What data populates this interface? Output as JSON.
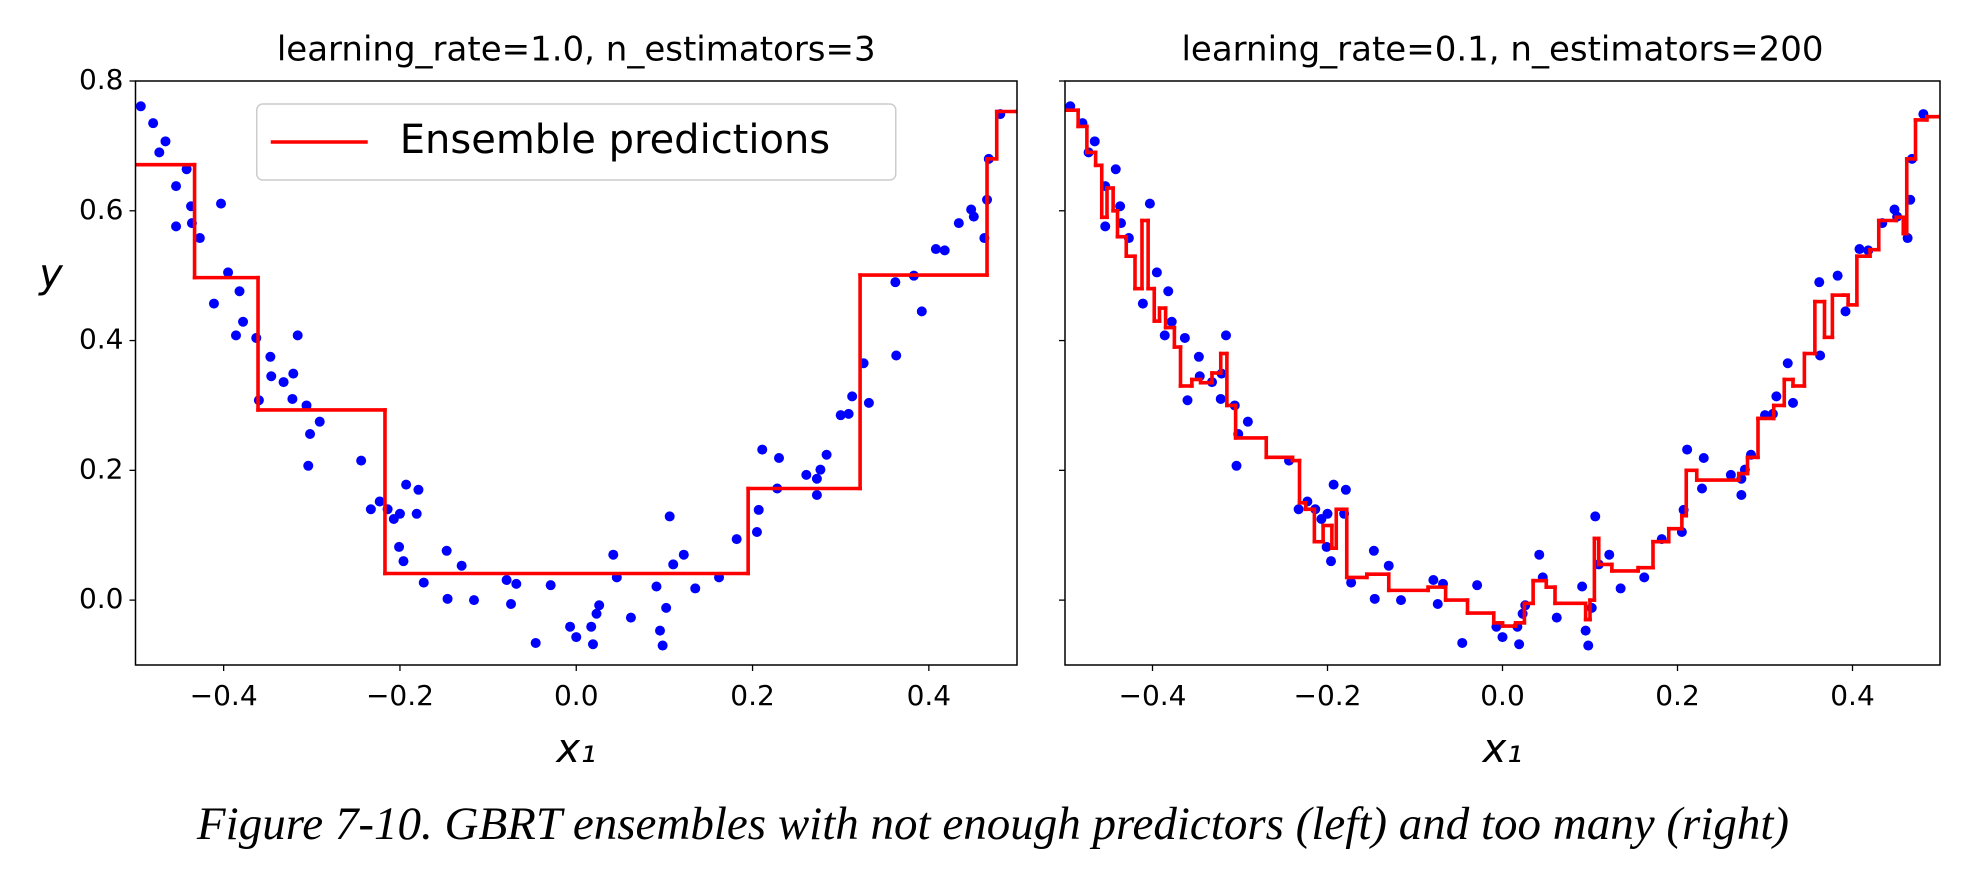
{
  "caption": "Figure 7-10. GBRT ensembles with not enough predictors (left) and too many (right)",
  "chart_data": [
    {
      "type": "scatter-step",
      "title": "learning_rate=1.0, n_estimators=3",
      "xlabel": "x₁",
      "ylabel": "y",
      "xlim": [
        -0.5,
        0.5
      ],
      "ylim": [
        -0.1,
        0.8
      ],
      "xticks": [
        {
          "value": -0.4,
          "label": "−0.4"
        },
        {
          "value": -0.2,
          "label": "−0.2"
        },
        {
          "value": 0,
          "label": "0.0"
        },
        0.2,
        0.4
      ],
      "yticks": [
        {
          "value": 0,
          "label": "0.0"
        },
        0.2,
        0.4,
        0.6,
        0.8
      ],
      "legend": "upper center",
      "scatter": {
        "color": "#0000ff",
        "x": [
          -0.494,
          -0.48,
          -0.473,
          -0.466,
          -0.454,
          -0.454,
          -0.442,
          -0.437,
          -0.436,
          -0.427,
          -0.403,
          -0.411,
          -0.395,
          -0.382,
          -0.378,
          -0.386,
          -0.363,
          -0.36,
          -0.347,
          -0.346,
          -0.332,
          -0.321,
          -0.316,
          -0.322,
          -0.306,
          -0.302,
          -0.291,
          -0.304,
          -0.244,
          -0.233,
          -0.223,
          -0.214,
          -0.207,
          -0.2,
          -0.201,
          -0.196,
          -0.193,
          -0.179,
          -0.181,
          -0.173,
          -0.147,
          -0.146,
          -0.13,
          -0.116,
          -0.079,
          -0.068,
          -0.074,
          -0.046,
          -0.029,
          -0.007,
          0.0,
          0.017,
          0.019,
          0.023,
          0.026,
          0.042,
          0.046,
          0.062,
          0.091,
          0.095,
          0.098,
          0.102,
          0.106,
          0.11,
          0.122,
          0.135,
          0.162,
          0.182,
          0.205,
          0.207,
          0.211,
          0.23,
          0.228,
          0.261,
          0.273,
          0.273,
          0.277,
          0.284,
          0.3,
          0.309,
          0.313,
          0.332,
          0.326,
          0.362,
          0.363,
          0.383,
          0.392,
          0.408,
          0.418,
          0.434,
          0.448,
          0.451,
          0.463,
          0.466,
          0.468,
          0.481
        ],
        "y": [
          0.761,
          0.735,
          0.69,
          0.707,
          0.638,
          0.576,
          0.664,
          0.607,
          0.581,
          0.558,
          0.611,
          0.457,
          0.505,
          0.476,
          0.429,
          0.408,
          0.404,
          0.308,
          0.375,
          0.345,
          0.336,
          0.349,
          0.408,
          0.31,
          0.3,
          0.256,
          0.275,
          0.207,
          0.215,
          0.14,
          0.152,
          0.14,
          0.125,
          0.133,
          0.082,
          0.06,
          0.178,
          0.17,
          0.133,
          0.027,
          0.076,
          0.002,
          0.053,
          0.0,
          0.031,
          0.025,
          -0.006,
          -0.066,
          0.023,
          -0.041,
          -0.057,
          -0.041,
          -0.068,
          -0.021,
          -0.008,
          0.07,
          0.035,
          -0.027,
          0.021,
          -0.047,
          -0.07,
          -0.012,
          0.129,
          0.055,
          0.07,
          0.018,
          0.035,
          0.094,
          0.105,
          0.139,
          0.232,
          0.219,
          0.172,
          0.193,
          0.187,
          0.162,
          0.201,
          0.224,
          0.285,
          0.287,
          0.314,
          0.304,
          0.365,
          0.49,
          0.377,
          0.5,
          0.445,
          0.541,
          0.539,
          0.581,
          0.602,
          0.591,
          0.558,
          0.617,
          0.68,
          0.749
        ]
      },
      "line": {
        "name": "Ensemble predictions",
        "color": "#ff0000",
        "drawstyle": "steps-post",
        "x": [
          -0.5,
          -0.433,
          -0.361,
          -0.217,
          0.195,
          0.322,
          0.466,
          0.477,
          0.5
        ],
        "y": [
          0.671,
          0.497,
          0.293,
          0.041,
          0.172,
          0.501,
          0.68,
          0.753,
          0.753
        ]
      }
    },
    {
      "type": "scatter-step",
      "title": "learning_rate=0.1, n_estimators=200",
      "xlabel": "x₁",
      "xlim": [
        -0.5,
        0.5
      ],
      "ylim": [
        -0.1,
        0.8
      ],
      "xticks": [
        {
          "value": -0.4,
          "label": "−0.4"
        },
        {
          "value": -0.2,
          "label": "−0.2"
        },
        {
          "value": 0,
          "label": "0.0"
        },
        0.2,
        0.4
      ],
      "yticks": [
        0,
        0.2,
        0.4,
        0.6,
        0.8
      ],
      "ytick_labels": false,
      "scatter": {
        "color": "#0000ff",
        "x": [
          -0.494,
          -0.48,
          -0.473,
          -0.466,
          -0.454,
          -0.454,
          -0.442,
          -0.437,
          -0.436,
          -0.427,
          -0.403,
          -0.411,
          -0.395,
          -0.382,
          -0.378,
          -0.386,
          -0.363,
          -0.36,
          -0.347,
          -0.346,
          -0.332,
          -0.321,
          -0.316,
          -0.322,
          -0.306,
          -0.302,
          -0.291,
          -0.304,
          -0.244,
          -0.233,
          -0.223,
          -0.214,
          -0.207,
          -0.2,
          -0.201,
          -0.196,
          -0.193,
          -0.179,
          -0.181,
          -0.173,
          -0.147,
          -0.146,
          -0.13,
          -0.116,
          -0.079,
          -0.068,
          -0.074,
          -0.046,
          -0.029,
          -0.007,
          0.0,
          0.017,
          0.019,
          0.023,
          0.026,
          0.042,
          0.046,
          0.062,
          0.091,
          0.095,
          0.098,
          0.102,
          0.106,
          0.11,
          0.122,
          0.135,
          0.162,
          0.182,
          0.205,
          0.207,
          0.211,
          0.23,
          0.228,
          0.261,
          0.273,
          0.273,
          0.277,
          0.284,
          0.3,
          0.309,
          0.313,
          0.332,
          0.326,
          0.362,
          0.363,
          0.383,
          0.392,
          0.408,
          0.418,
          0.434,
          0.448,
          0.451,
          0.463,
          0.466,
          0.468,
          0.481
        ],
        "y": [
          0.761,
          0.735,
          0.69,
          0.707,
          0.638,
          0.576,
          0.664,
          0.607,
          0.581,
          0.558,
          0.611,
          0.457,
          0.505,
          0.476,
          0.429,
          0.408,
          0.404,
          0.308,
          0.375,
          0.345,
          0.336,
          0.349,
          0.408,
          0.31,
          0.3,
          0.256,
          0.275,
          0.207,
          0.215,
          0.14,
          0.152,
          0.14,
          0.125,
          0.133,
          0.082,
          0.06,
          0.178,
          0.17,
          0.133,
          0.027,
          0.076,
          0.002,
          0.053,
          0.0,
          0.031,
          0.025,
          -0.006,
          -0.066,
          0.023,
          -0.041,
          -0.057,
          -0.041,
          -0.068,
          -0.021,
          -0.008,
          0.07,
          0.035,
          -0.027,
          0.021,
          -0.047,
          -0.07,
          -0.012,
          0.129,
          0.055,
          0.07,
          0.018,
          0.035,
          0.094,
          0.105,
          0.139,
          0.232,
          0.219,
          0.172,
          0.193,
          0.187,
          0.162,
          0.201,
          0.224,
          0.285,
          0.287,
          0.314,
          0.304,
          0.365,
          0.49,
          0.377,
          0.5,
          0.445,
          0.541,
          0.539,
          0.581,
          0.602,
          0.591,
          0.558,
          0.617,
          0.68,
          0.749
        ]
      },
      "line": {
        "color": "#ff0000",
        "drawstyle": "steps-post",
        "x": [
          -0.5,
          -0.485,
          -0.475,
          -0.465,
          -0.458,
          -0.452,
          -0.445,
          -0.44,
          -0.43,
          -0.42,
          -0.412,
          -0.405,
          -0.398,
          -0.392,
          -0.385,
          -0.375,
          -0.368,
          -0.355,
          -0.345,
          -0.332,
          -0.322,
          -0.315,
          -0.305,
          -0.27,
          -0.24,
          -0.232,
          -0.225,
          -0.215,
          -0.205,
          -0.195,
          -0.19,
          -0.178,
          -0.155,
          -0.13,
          -0.085,
          -0.065,
          -0.04,
          -0.01,
          0.0,
          0.015,
          0.025,
          0.035,
          0.05,
          0.06,
          0.095,
          0.1,
          0.105,
          0.11,
          0.125,
          0.155,
          0.172,
          0.19,
          0.205,
          0.21,
          0.222,
          0.27,
          0.28,
          0.292,
          0.31,
          0.322,
          0.332,
          0.345,
          0.357,
          0.368,
          0.377,
          0.39,
          0.395,
          0.405,
          0.42,
          0.43,
          0.45,
          0.458,
          0.462,
          0.472,
          0.485,
          0.5
        ],
        "y": [
          0.755,
          0.73,
          0.69,
          0.67,
          0.59,
          0.635,
          0.6,
          0.56,
          0.53,
          0.48,
          0.585,
          0.48,
          0.43,
          0.45,
          0.42,
          0.39,
          0.33,
          0.34,
          0.335,
          0.35,
          0.38,
          0.3,
          0.25,
          0.22,
          0.215,
          0.15,
          0.14,
          0.09,
          0.115,
          0.08,
          0.14,
          0.035,
          0.04,
          0.015,
          0.02,
          0.0,
          -0.02,
          -0.035,
          -0.04,
          -0.035,
          -0.005,
          0.03,
          0.02,
          -0.005,
          -0.03,
          0.0,
          0.095,
          0.055,
          0.045,
          0.05,
          0.09,
          0.11,
          0.13,
          0.2,
          0.185,
          0.195,
          0.22,
          0.28,
          0.3,
          0.34,
          0.33,
          0.38,
          0.46,
          0.405,
          0.47,
          0.47,
          0.455,
          0.53,
          0.54,
          0.585,
          0.59,
          0.565,
          0.68,
          0.74,
          0.745,
          0.745
        ]
      }
    }
  ]
}
